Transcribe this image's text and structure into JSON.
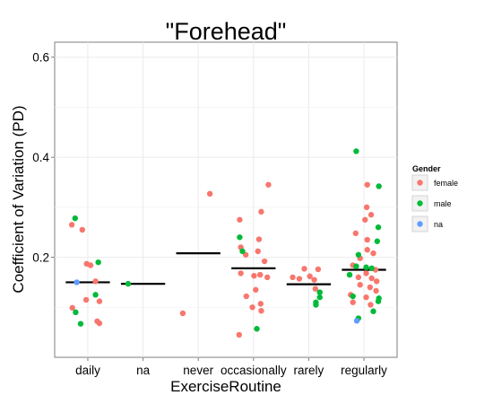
{
  "chart_data": {
    "type": "scatter",
    "title": "\"Forehead\"",
    "xlabel": "ExerciseRoutine",
    "ylabel": "Coefficient of Variation (PD)",
    "categories": [
      "daily",
      "na",
      "never",
      "occasionally",
      "rarely",
      "regularly"
    ],
    "ylim": [
      0.0,
      0.63
    ],
    "yticks": [
      0.2,
      0.4,
      0.6
    ],
    "ytick_labels": [
      "0.2",
      "0.4",
      "0.6"
    ],
    "grid": true,
    "legend": {
      "title": "Gender",
      "placement": "right",
      "entries": [
        {
          "name": "female",
          "color": "#F8766D"
        },
        {
          "name": "male",
          "color": "#00BA38"
        },
        {
          "name": "na",
          "color": "#619CFF"
        }
      ]
    },
    "medians": [
      {
        "category": "daily",
        "value": 0.15
      },
      {
        "category": "na",
        "value": 0.147
      },
      {
        "category": "never",
        "value": 0.208
      },
      {
        "category": "occasionally",
        "value": 0.178
      },
      {
        "category": "rarely",
        "value": 0.146
      },
      {
        "category": "regularly",
        "value": 0.175
      }
    ],
    "series": [
      {
        "name": "female",
        "color": "#F8766D",
        "points": [
          {
            "category": "daily",
            "y": 0.265,
            "j": -0.29
          },
          {
            "category": "daily",
            "y": 0.255,
            "j": -0.1
          },
          {
            "category": "daily",
            "y": 0.187,
            "j": -0.02
          },
          {
            "category": "daily",
            "y": 0.184,
            "j": 0.05
          },
          {
            "category": "daily",
            "y": 0.152,
            "j": 0.14
          },
          {
            "category": "daily",
            "y": 0.115,
            "j": -0.03
          },
          {
            "category": "daily",
            "y": 0.112,
            "j": 0.21
          },
          {
            "category": "daily",
            "y": 0.099,
            "j": -0.28
          },
          {
            "category": "daily",
            "y": 0.072,
            "j": 0.17
          },
          {
            "category": "daily",
            "y": 0.068,
            "j": 0.21
          },
          {
            "category": "never",
            "y": 0.327,
            "j": 0.21
          },
          {
            "category": "never",
            "y": 0.088,
            "j": -0.28
          },
          {
            "category": "occasionally",
            "y": 0.345,
            "j": 0.27
          },
          {
            "category": "occasionally",
            "y": 0.291,
            "j": 0.14
          },
          {
            "category": "occasionally",
            "y": 0.275,
            "j": -0.25
          },
          {
            "category": "occasionally",
            "y": 0.236,
            "j": 0.1
          },
          {
            "category": "occasionally",
            "y": 0.22,
            "j": -0.23
          },
          {
            "category": "occasionally",
            "y": 0.212,
            "j": 0.08
          },
          {
            "category": "occasionally",
            "y": 0.205,
            "j": -0.14
          },
          {
            "category": "occasionally",
            "y": 0.192,
            "j": 0.2
          },
          {
            "category": "occasionally",
            "y": 0.168,
            "j": -0.23
          },
          {
            "category": "occasionally",
            "y": 0.165,
            "j": 0.12
          },
          {
            "category": "occasionally",
            "y": 0.163,
            "j": 0.01
          },
          {
            "category": "occasionally",
            "y": 0.16,
            "j": 0.25
          },
          {
            "category": "occasionally",
            "y": 0.135,
            "j": 0.04
          },
          {
            "category": "occasionally",
            "y": 0.122,
            "j": -0.13
          },
          {
            "category": "occasionally",
            "y": 0.107,
            "j": 0.13
          },
          {
            "category": "occasionally",
            "y": 0.1,
            "j": -0.02
          },
          {
            "category": "occasionally",
            "y": 0.093,
            "j": 0.14
          },
          {
            "category": "occasionally",
            "y": 0.045,
            "j": -0.26
          },
          {
            "category": "rarely",
            "y": 0.177,
            "j": -0.08
          },
          {
            "category": "rarely",
            "y": 0.176,
            "j": 0.17
          },
          {
            "category": "rarely",
            "y": 0.162,
            "j": 0.02
          },
          {
            "category": "rarely",
            "y": 0.16,
            "j": -0.29
          },
          {
            "category": "rarely",
            "y": 0.157,
            "j": -0.17
          },
          {
            "category": "rarely",
            "y": 0.155,
            "j": 0.1
          },
          {
            "category": "rarely",
            "y": 0.137,
            "j": 0.12
          },
          {
            "category": "regularly",
            "y": 0.345,
            "j": 0.06
          },
          {
            "category": "regularly",
            "y": 0.3,
            "j": 0.05
          },
          {
            "category": "regularly",
            "y": 0.285,
            "j": 0.13
          },
          {
            "category": "regularly",
            "y": 0.275,
            "j": 0.02
          },
          {
            "category": "regularly",
            "y": 0.248,
            "j": -0.15
          },
          {
            "category": "regularly",
            "y": 0.235,
            "j": 0.06
          },
          {
            "category": "regularly",
            "y": 0.215,
            "j": 0.06
          },
          {
            "category": "regularly",
            "y": 0.208,
            "j": 0.17
          },
          {
            "category": "regularly",
            "y": 0.198,
            "j": -0.07
          },
          {
            "category": "regularly",
            "y": 0.184,
            "j": -0.2
          },
          {
            "category": "regularly",
            "y": 0.175,
            "j": 0.21
          },
          {
            "category": "regularly",
            "y": 0.168,
            "j": 0.04
          },
          {
            "category": "regularly",
            "y": 0.16,
            "j": -0.1
          },
          {
            "category": "regularly",
            "y": 0.158,
            "j": 0.14
          },
          {
            "category": "regularly",
            "y": 0.152,
            "j": 0.23
          },
          {
            "category": "regularly",
            "y": 0.145,
            "j": -0.07
          },
          {
            "category": "regularly",
            "y": 0.14,
            "j": 0.11
          },
          {
            "category": "regularly",
            "y": 0.133,
            "j": 0.22
          },
          {
            "category": "regularly",
            "y": 0.125,
            "j": -0.24
          },
          {
            "category": "regularly",
            "y": 0.12,
            "j": 0.04
          },
          {
            "category": "regularly",
            "y": 0.11,
            "j": -0.2
          },
          {
            "category": "regularly",
            "y": 0.105,
            "j": 0.12
          }
        ]
      },
      {
        "name": "male",
        "color": "#00BA38",
        "points": [
          {
            "category": "daily",
            "y": 0.278,
            "j": -0.23
          },
          {
            "category": "daily",
            "y": 0.19,
            "j": 0.19
          },
          {
            "category": "daily",
            "y": 0.125,
            "j": 0.14
          },
          {
            "category": "daily",
            "y": 0.09,
            "j": -0.22
          },
          {
            "category": "daily",
            "y": 0.067,
            "j": -0.13
          },
          {
            "category": "na",
            "y": 0.147,
            "j": -0.27
          },
          {
            "category": "occasionally",
            "y": 0.24,
            "j": -0.25
          },
          {
            "category": "occasionally",
            "y": 0.212,
            "j": -0.2
          },
          {
            "category": "occasionally",
            "y": 0.057,
            "j": 0.06
          },
          {
            "category": "rarely",
            "y": 0.13,
            "j": 0.2
          },
          {
            "category": "rarely",
            "y": 0.12,
            "j": 0.2
          },
          {
            "category": "rarely",
            "y": 0.11,
            "j": 0.13
          },
          {
            "category": "rarely",
            "y": 0.105,
            "j": 0.13
          },
          {
            "category": "regularly",
            "y": 0.412,
            "j": -0.14
          },
          {
            "category": "regularly",
            "y": 0.342,
            "j": 0.27
          },
          {
            "category": "regularly",
            "y": 0.26,
            "j": 0.26
          },
          {
            "category": "regularly",
            "y": 0.232,
            "j": 0.24
          },
          {
            "category": "regularly",
            "y": 0.205,
            "j": -0.1
          },
          {
            "category": "regularly",
            "y": 0.182,
            "j": -0.14
          },
          {
            "category": "regularly",
            "y": 0.18,
            "j": 0.04
          },
          {
            "category": "regularly",
            "y": 0.178,
            "j": 0.14
          },
          {
            "category": "regularly",
            "y": 0.165,
            "j": -0.26
          },
          {
            "category": "regularly",
            "y": 0.122,
            "j": -0.2
          },
          {
            "category": "regularly",
            "y": 0.118,
            "j": 0.27
          },
          {
            "category": "regularly",
            "y": 0.112,
            "j": 0.26
          },
          {
            "category": "regularly",
            "y": 0.092,
            "j": 0.17
          },
          {
            "category": "regularly",
            "y": 0.078,
            "j": -0.1
          }
        ]
      },
      {
        "name": "na",
        "color": "#619CFF",
        "points": [
          {
            "category": "daily",
            "y": 0.15,
            "j": -0.2
          },
          {
            "category": "regularly",
            "y": 0.073,
            "j": -0.13
          }
        ]
      }
    ]
  }
}
